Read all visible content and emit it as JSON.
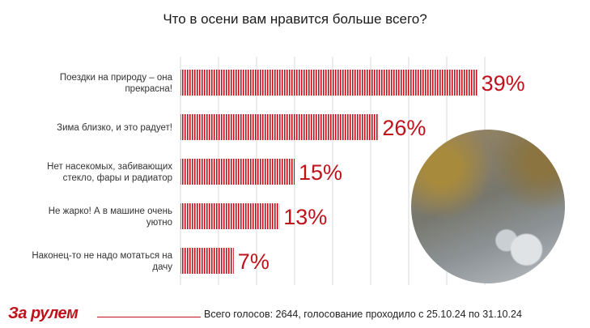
{
  "chart_data": {
    "type": "bar",
    "orientation": "horizontal",
    "title": "Что в осени вам нравится больше всего?",
    "categories": [
      [
        "Поездки на природу – она",
        "прекрасна!"
      ],
      [
        "Зима близко, и это радует!"
      ],
      [
        "Нет насекомых, забивающих",
        "стекло, фары и радиатор"
      ],
      [
        "Не жарко! А в машине очень",
        "уютно"
      ],
      [
        "Наконец-то не надо мотаться на",
        "дачу"
      ]
    ],
    "values": [
      39,
      26,
      15,
      13,
      7
    ],
    "value_labels": [
      "39%",
      "26%",
      "15%",
      "13%",
      "7%"
    ],
    "xlim": [
      0,
      40
    ],
    "grid": true,
    "bar_color": "#c0121b"
  },
  "footer": {
    "logo": "За рулем",
    "note": "Всего голосов: 2644, голосование проходило с 25.10.24 по 31.10.24"
  }
}
